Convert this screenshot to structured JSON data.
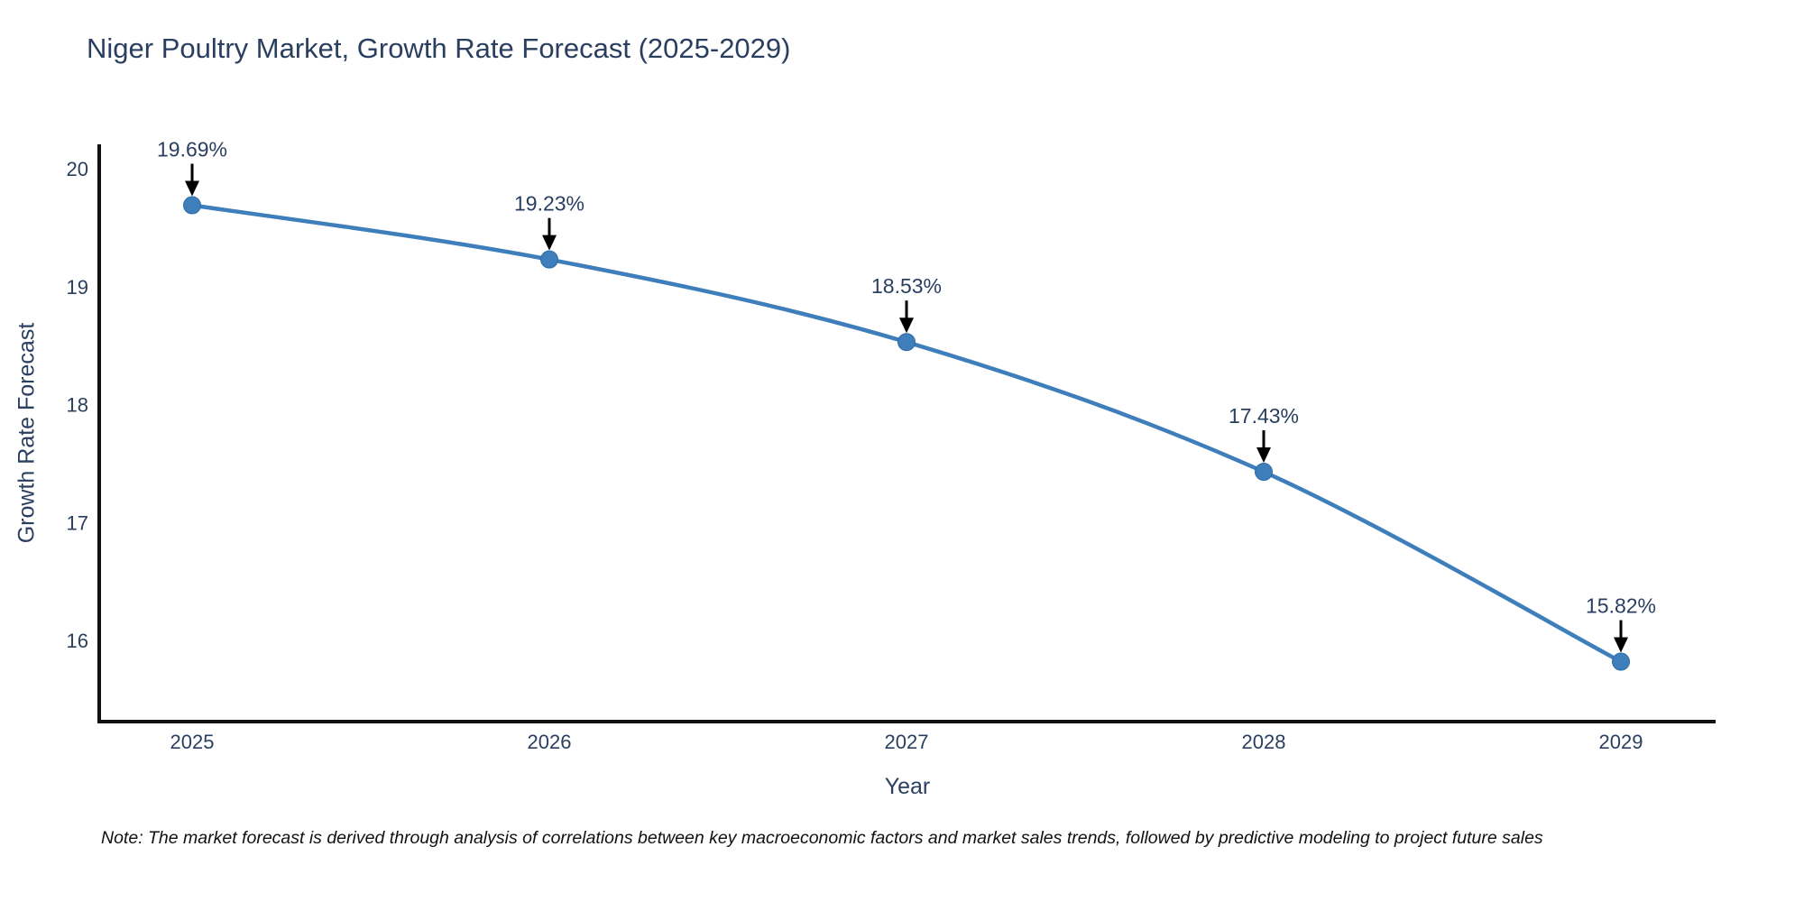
{
  "title": "Niger Poultry Market, Growth Rate Forecast (2025-2029)",
  "note": "Note: The market forecast is derived through analysis of correlations between key macroeconomic factors and market sales trends, followed by predictive modeling to project future sales",
  "chart_data": {
    "type": "line",
    "title": "Niger Poultry Market, Growth Rate Forecast (2025-2029)",
    "xlabel": "Year",
    "ylabel": "Growth Rate Forecast",
    "x": [
      2025,
      2026,
      2027,
      2028,
      2029
    ],
    "series": [
      {
        "name": "Growth Rate Forecast",
        "values": [
          19.69,
          19.23,
          18.53,
          17.43,
          15.82
        ],
        "labels": [
          "19.69%",
          "19.23%",
          "18.53%",
          "17.43%",
          "15.82%"
        ]
      }
    ],
    "yticks": [
      16,
      17,
      18,
      19,
      20
    ],
    "ylim": [
      15.3,
      20.2
    ],
    "grid": false,
    "legend": false,
    "line_shape": "spline",
    "annotations_have_arrows": true,
    "colors": {
      "line": "#3d7ebb",
      "marker": "#3d7ebb",
      "marker_edge": "#2e6da4",
      "axis_spine": "#111111",
      "text": "#2a3f5f",
      "annotation_arrow": "#000000"
    }
  }
}
